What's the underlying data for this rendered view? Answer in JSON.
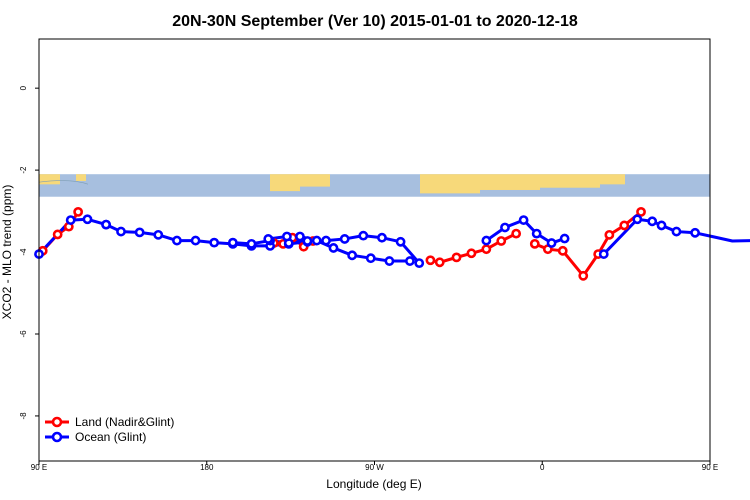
{
  "chart_data": {
    "type": "line",
    "title": "20N-30N September (Ver 10)   2015-01-01 to 2020-12-18",
    "xlabel": "Longitude (deg E)",
    "ylabel": "XCO2 - MLO trend (ppm)",
    "xlim": [
      90,
      450
    ],
    "ylim": [
      -9.1,
      1.2
    ],
    "x_ticks": [
      90,
      180,
      270,
      360,
      450,
      540
    ],
    "x_tick_labels": [
      "90 E",
      "180",
      "90 W",
      "0",
      "90 E",
      "180"
    ],
    "y_ticks": [
      0,
      -2,
      -4,
      -6,
      -8
    ],
    "y_tick_labels": [
      "0",
      "-2",
      "-4",
      "-6",
      "-8"
    ],
    "map_strip": {
      "y_top": -2.1,
      "y_bottom": -2.65,
      "land_color": "#f7d97a",
      "ocean_color": "#a7bfdf"
    },
    "legend": {
      "position": "bottom-left"
    },
    "series": [
      {
        "name": "Land (Nadir&Glint)",
        "color": "#ff0000",
        "segments": [
          {
            "x": [
              92,
              100,
              106,
              111
            ],
            "y": [
              -3.97,
              -3.57,
              -3.38,
              -3.02
            ]
          },
          {
            "x": [
              216,
              221,
              226,
              232,
              237
            ],
            "y": [
              -3.78,
              -3.8,
              -3.65,
              -3.87,
              -3.73
            ]
          },
          {
            "x": [
              300,
              305,
              314,
              322,
              330,
              338,
              346
            ],
            "y": [
              -4.2,
              -4.25,
              -4.13,
              -4.03,
              -3.93,
              -3.73,
              -3.55
            ]
          },
          {
            "x": [
              356,
              363,
              371,
              382,
              390,
              396,
              404,
              413
            ],
            "y": [
              -3.8,
              -3.93,
              -3.97,
              -4.58,
              -4.05,
              -3.58,
              -3.35,
              -3.02
            ]
          }
        ]
      },
      {
        "name": "Ocean (Glint)",
        "color": "#0000ff",
        "segments": [
          {
            "x": [
              90,
              107,
              116,
              126
            ],
            "y": [
              -4.05,
              -3.22,
              -3.2,
              -3.33
            ]
          },
          {
            "x": [
              126,
              134,
              144,
              154,
              164,
              174,
              184,
              194,
              204,
              214,
              224,
              234,
              244,
              254,
              264,
              274,
              284,
              294
            ],
            "y": [
              -3.33,
              -3.5,
              -3.52,
              -3.58,
              -3.72,
              -3.72,
              -3.77,
              -3.8,
              -3.85,
              -3.85,
              -3.8,
              -3.75,
              -3.72,
              -3.68,
              -3.6,
              -3.65,
              -3.75,
              -4.27
            ]
          },
          {
            "x": [
              194,
              204,
              214,
              224,
              234
            ],
            "y": [
              -3.77,
              -3.8,
              -3.72,
              -3.78,
              -3.73
            ]
          },
          {
            "x": [
              213,
              223,
              230,
              239,
              248,
              258,
              268,
              278,
              289
            ],
            "y": [
              -3.68,
              -3.62,
              -3.62,
              -3.72,
              -3.9,
              -4.08,
              -4.15,
              -4.22,
              -4.22
            ]
          },
          {
            "x": [
              330,
              340,
              350,
              357,
              365,
              372
            ],
            "y": [
              -3.72,
              -3.4,
              -3.22,
              -3.55,
              -3.78,
              -3.67
            ]
          },
          {
            "x": [
              393,
              411,
              419,
              424,
              432,
              442,
              452,
              462,
              472,
              482,
              490
            ],
            "y": [
              -4.05,
              -3.2,
              -3.25,
              -3.35,
              -3.5,
              -3.53,
              -3.63,
              -3.73,
              -3.72,
              -3.75,
              -3.72
            ]
          }
        ]
      }
    ]
  }
}
